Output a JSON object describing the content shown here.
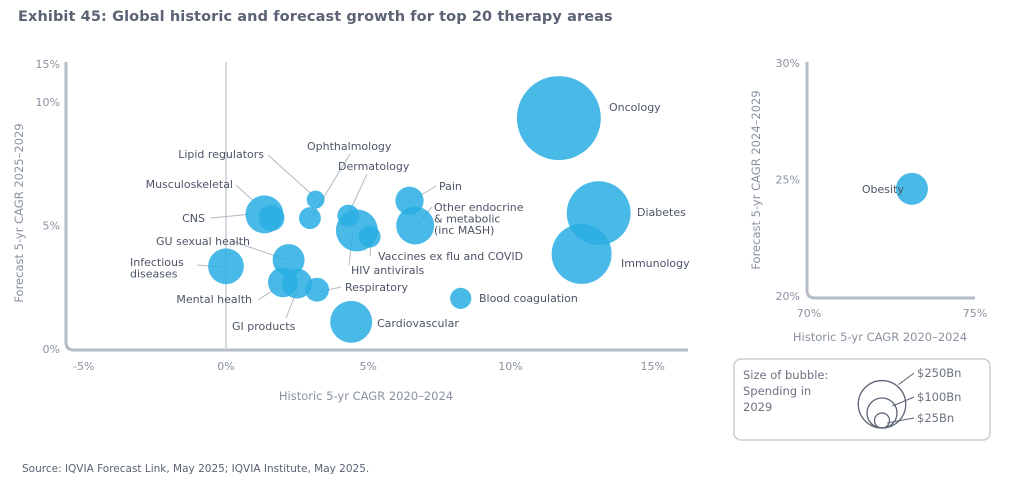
{
  "title": "Exhibit 45: Global historic and forecast growth for top 20 therapy areas",
  "source": "Source: IQVIA Forecast Link, May 2025; IQVIA Institute, May 2025.",
  "chart_data": [
    {
      "type": "scatter",
      "subtype": "bubble",
      "title": "Exhibit 45: Global historic and forecast growth for top 20 therapy areas",
      "xlabel": "Historic 5-yr CAGR 2020–2024",
      "ylabel": "Forecast 5-yr CAGR 2025–2029",
      "xlim": [
        -5,
        15
      ],
      "ylim": [
        0,
        15
      ],
      "y_axis_note": "axis break between 10% and 15%",
      "xticks": [
        "-5%",
        "0%",
        "5%",
        "10%",
        "15%"
      ],
      "yticks": [
        "0%",
        "5%",
        "10%",
        "15%"
      ],
      "size_variable": "Spending in 2029 ($Bn)",
      "color": "#29aee3",
      "points": [
        {
          "name": "Oncology",
          "x": 11.7,
          "y": 9.35,
          "size": 440
        },
        {
          "name": "Diabetes",
          "x": 13.1,
          "y": 5.5,
          "size": 255
        },
        {
          "name": "Immunology",
          "x": 12.5,
          "y": 3.85,
          "size": 225
        },
        {
          "name": "Lipid regulators",
          "x": 3.15,
          "y": 6.05,
          "size": 20
        },
        {
          "name": "Ophthalmology",
          "x": 2.95,
          "y": 5.3,
          "size": 30
        },
        {
          "name": "Dermatology",
          "x": 4.3,
          "y": 5.4,
          "size": 30
        },
        {
          "name": "Pain",
          "x": 6.45,
          "y": 6.0,
          "size": 50
        },
        {
          "name": "Other endocrine & metabolic (inc MASH)",
          "x": 6.65,
          "y": 5.0,
          "size": 90
        },
        {
          "name": "Musculoskeletal",
          "x": 1.6,
          "y": 5.3,
          "size": 42
        },
        {
          "name": "CNS",
          "x": 1.35,
          "y": 5.45,
          "size": 90
        },
        {
          "name": "GU sexual health",
          "x": 2.2,
          "y": 3.6,
          "size": 64
        },
        {
          "name": "Infectious diseases",
          "x": 0.0,
          "y": 3.35,
          "size": 80
        },
        {
          "name": "HIV antivirals",
          "x": 4.6,
          "y": 4.8,
          "size": 110
        },
        {
          "name": "Vaccines ex flu and COVID",
          "x": 5.05,
          "y": 4.55,
          "size": 30
        },
        {
          "name": "Mental health",
          "x": 2.0,
          "y": 2.7,
          "size": 56
        },
        {
          "name": "GI products",
          "x": 2.5,
          "y": 2.65,
          "size": 56
        },
        {
          "name": "Respiratory",
          "x": 3.2,
          "y": 2.4,
          "size": 36
        },
        {
          "name": "Blood coagulation",
          "x": 8.25,
          "y": 2.05,
          "size": 28
        },
        {
          "name": "Cardiovascular",
          "x": 4.4,
          "y": 1.1,
          "size": 110
        }
      ]
    },
    {
      "type": "scatter",
      "subtype": "bubble",
      "title": "",
      "xlabel": "Historic 5-yr CAGR 2020–2024",
      "ylabel": "Forecast 5-yr CAGR 2024–2029",
      "xlim": [
        70,
        75
      ],
      "ylim": [
        20,
        30
      ],
      "xticks": [
        "70%",
        "75%"
      ],
      "yticks": [
        "20%",
        "25%",
        "30%"
      ],
      "color": "#29aee3",
      "points": [
        {
          "name": "Obesity",
          "x": 73.1,
          "y": 24.6,
          "size": 64
        }
      ]
    }
  ],
  "legend": {
    "title_lines": [
      "Size of bubble:",
      "Spending in",
      "2029"
    ],
    "entries": [
      {
        "label": "$250Bn",
        "value": 250
      },
      {
        "label": "$100Bn",
        "value": 100
      },
      {
        "label": "$25Bn",
        "value": 25
      }
    ]
  }
}
